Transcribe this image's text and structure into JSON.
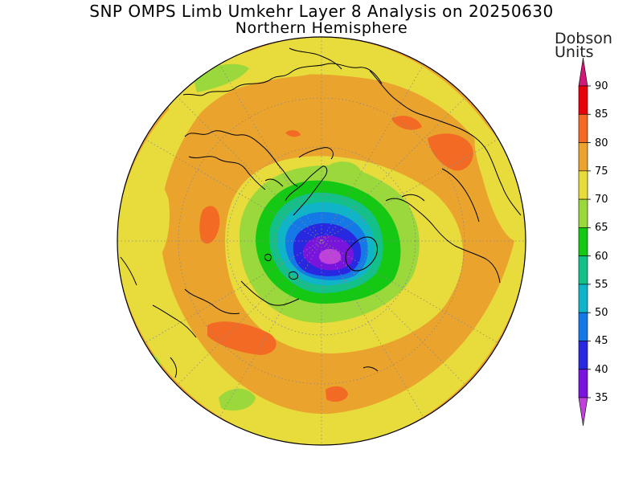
{
  "title": "SNP OMPS Limb Umkehr Layer 8 Analysis on 20250630",
  "subtitle": "Northern Hemisphere",
  "colorbar": {
    "units_line1": "Dobson",
    "units_line2": "Units",
    "labels": [
      "90",
      "85",
      "80",
      "75",
      "70",
      "65",
      "60",
      "55",
      "50",
      "45",
      "40",
      "35"
    ],
    "bands": [
      {
        "from": 90,
        "to": 95,
        "color": "#d01878"
      },
      {
        "from": 85,
        "to": 90,
        "color": "#e8000a"
      },
      {
        "from": 80,
        "to": 85,
        "color": "#f26a24"
      },
      {
        "from": 75,
        "to": 80,
        "color": "#eaa42d"
      },
      {
        "from": 70,
        "to": 75,
        "color": "#e8dc3c"
      },
      {
        "from": 65,
        "to": 70,
        "color": "#9ad83c"
      },
      {
        "from": 60,
        "to": 65,
        "color": "#14c814"
      },
      {
        "from": 55,
        "to": 60,
        "color": "#14c08a"
      },
      {
        "from": 50,
        "to": 55,
        "color": "#10b4c8"
      },
      {
        "from": 45,
        "to": 50,
        "color": "#1478e6"
      },
      {
        "from": 40,
        "to": 45,
        "color": "#2828e0"
      },
      {
        "from": 35,
        "to": 40,
        "color": "#7814dc"
      },
      {
        "from": 30,
        "to": 35,
        "color": "#c040dc"
      }
    ]
  },
  "map": {
    "projection": "north polar stereographic",
    "background_color": "#eaa42d",
    "outer_color": "#e8dc3c"
  }
}
